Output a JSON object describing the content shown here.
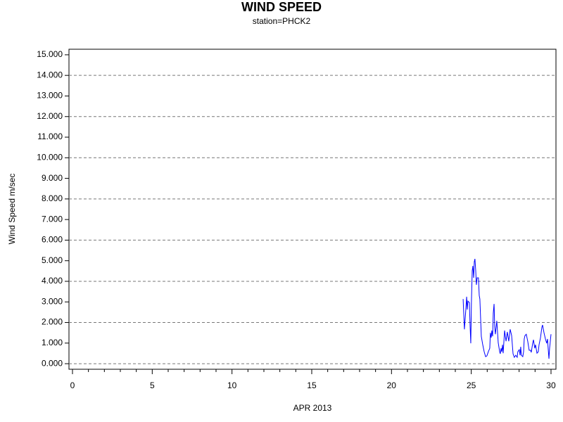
{
  "chart_data": {
    "type": "line",
    "title": "WIND SPEED",
    "subtitle": "station=PHCK2",
    "x_label": "APR 2013",
    "y_label": "Wind Speed m/sec",
    "xlim": [
      -0.22,
      30.31
    ],
    "ylim": [
      -0.27,
      15.27
    ],
    "xticks": [
      0,
      5,
      10,
      15,
      20,
      25,
      30
    ],
    "xminorticks": [
      1,
      2,
      3,
      4,
      6,
      7,
      8,
      9,
      11,
      12,
      13,
      14,
      16,
      17,
      18,
      19,
      21,
      22,
      23,
      24,
      26,
      27,
      28,
      29
    ],
    "yticks": [
      {
        "value": 0,
        "label": "0.000"
      },
      {
        "value": 1,
        "label": "1.000"
      },
      {
        "value": 2,
        "label": "2.000"
      },
      {
        "value": 3,
        "label": "3.000"
      },
      {
        "value": 4,
        "label": "4.000"
      },
      {
        "value": 5,
        "label": "5.000"
      },
      {
        "value": 6,
        "label": "6.000"
      },
      {
        "value": 7,
        "label": "7.000"
      },
      {
        "value": 8,
        "label": "8.000"
      },
      {
        "value": 9,
        "label": "9.000"
      },
      {
        "value": 10,
        "label": "10.000"
      },
      {
        "value": 11,
        "label": "11.000"
      },
      {
        "value": 12,
        "label": "12.000"
      },
      {
        "value": 13,
        "label": "13.000"
      },
      {
        "value": 14,
        "label": "14.000"
      },
      {
        "value": 15,
        "label": "15.000"
      }
    ],
    "grid_lines": [
      0,
      2,
      4,
      6,
      8,
      10,
      12,
      14
    ],
    "color": "#0000ff",
    "x": [
      24.49,
      24.57,
      24.66,
      24.71,
      24.75,
      24.79,
      24.88,
      24.93,
      24.97,
      25.01,
      25.06,
      25.1,
      25.15,
      25.19,
      25.23,
      25.28,
      25.32,
      25.37,
      25.45,
      25.5,
      25.54,
      25.59,
      25.63,
      25.72,
      25.81,
      25.9,
      25.98,
      26.07,
      26.16,
      26.2,
      26.25,
      26.29,
      26.34,
      26.38,
      26.43,
      26.47,
      26.51,
      26.6,
      26.69,
      26.78,
      26.82,
      26.87,
      26.91,
      26.96,
      27.0,
      27.09,
      27.18,
      27.26,
      27.35,
      27.44,
      27.53,
      27.62,
      27.7,
      27.79,
      27.88,
      27.92,
      28.01,
      28.06,
      28.1,
      28.14,
      28.23,
      28.28,
      28.32,
      28.37,
      28.45,
      28.54,
      28.63,
      28.72,
      28.76,
      28.85,
      28.9,
      28.98,
      29.03,
      29.12,
      29.2,
      29.25,
      29.34,
      29.43,
      29.47,
      29.56,
      29.65,
      29.73,
      29.78,
      29.82,
      29.87,
      29.91,
      30.0
    ],
    "values": [
      3.14,
      1.67,
      2.63,
      3.25,
      2.63,
      3.04,
      2.97,
      1.78,
      0.99,
      2.97,
      4.51,
      4.75,
      4.17,
      4.95,
      5.09,
      4.51,
      3.83,
      4.17,
      4.17,
      3.31,
      3.14,
      2.12,
      1.33,
      0.92,
      0.58,
      0.34,
      0.38,
      0.58,
      0.75,
      1.5,
      1.26,
      1.61,
      1.33,
      2.46,
      2.9,
      1.78,
      1.43,
      2.08,
      1.02,
      0.58,
      0.48,
      0.75,
      0.58,
      0.92,
      0.51,
      1.61,
      1.09,
      1.54,
      1.09,
      1.67,
      1.37,
      0.48,
      0.31,
      0.41,
      0.31,
      0.58,
      0.68,
      0.41,
      0.82,
      0.41,
      0.34,
      0.58,
      1.2,
      1.37,
      1.43,
      1.09,
      0.65,
      0.65,
      0.55,
      0.99,
      1.16,
      0.75,
      0.92,
      0.51,
      0.58,
      0.92,
      1.26,
      1.78,
      1.88,
      1.5,
      1.2,
      0.99,
      1.2,
      0.75,
      0.24,
      0.75,
      1.43
    ]
  }
}
